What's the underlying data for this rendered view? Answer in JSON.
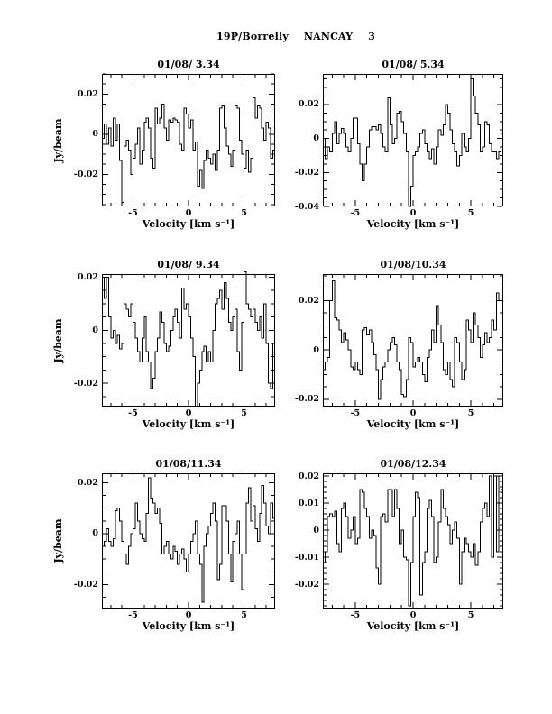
{
  "figure": {
    "header": {
      "object": "19P/Borrelly",
      "telescope": "NANCAY",
      "page_number": "3"
    }
  },
  "chart_data": [
    {
      "type": "line",
      "title": "01/08/ 3.34",
      "xlabel": "Velocity [km s⁻¹]",
      "ylabel": "Jy/beam",
      "xlim": [
        -7.8,
        7.8
      ],
      "ylim": [
        -0.036,
        0.03
      ],
      "grid": false,
      "legend": null,
      "xticks": {
        "major": [
          -5,
          0,
          5
        ],
        "labels": [
          "-5",
          "0",
          "5"
        ],
        "minor_step": 1
      },
      "yticks": {
        "major": [
          0.02,
          0,
          -0.02
        ],
        "labels": [
          "0.02",
          "0",
          "-0.02"
        ],
        "minor_step": 0.005
      },
      "values": [
        -0.002,
        0.005,
        -0.005,
        0.003,
        -0.006,
        0.008,
        -0.003,
        0.005,
        -0.013,
        -0.034,
        -0.006,
        -0.003,
        -0.008,
        -0.02,
        -0.012,
        -0.005,
        0.003,
        -0.015,
        -0.008,
        0.006,
        0.008,
        0.003,
        -0.012,
        -0.017,
        0.013,
        0.005,
        0.008,
        0.015,
        0.003,
        -0.003,
        0.007,
        0.006,
        0.008,
        0.007,
        0.006,
        -0.005,
        -0.008,
        0.013,
        0.01,
        0.003,
        0.007,
        -0.008,
        -0.004,
        -0.026,
        -0.018,
        -0.027,
        -0.013,
        -0.008,
        -0.012,
        -0.015,
        -0.01,
        -0.018,
        -0.008,
        0.013,
        0.014,
        0.003,
        -0.006,
        -0.01,
        -0.016,
        -0.008,
        0.014,
        0.013,
        -0.003,
        -0.01,
        -0.017,
        -0.008,
        -0.019,
        -0.012,
        0.018,
        0.008,
        0.014,
        0.013,
        0.003,
        -0.003,
        0.006,
        0.003,
        -0.012,
        -0.008
      ]
    },
    {
      "type": "line",
      "title": "01/08/ 5.34",
      "xlabel": "Velocity [km s⁻¹]",
      "ylabel": null,
      "xlim": [
        -7.8,
        7.8
      ],
      "ylim": [
        -0.04,
        0.038
      ],
      "grid": false,
      "legend": null,
      "xticks": {
        "major": [
          -5,
          0,
          5
        ],
        "labels": [
          "-5",
          "0",
          "5"
        ],
        "minor_step": 1
      },
      "yticks": {
        "major": [
          0.02,
          0,
          -0.02,
          -0.04
        ],
        "labels": [
          "0.02",
          "0",
          "-0.02",
          "-0.04"
        ],
        "minor_step": 0.005
      },
      "values": [
        0,
        -0.012,
        -0.005,
        -0.008,
        0.003,
        0.01,
        -0.003,
        0.003,
        0.006,
        0.003,
        -0.005,
        -0.008,
        0,
        0.012,
        0.012,
        -0.003,
        -0.015,
        -0.025,
        -0.015,
        -0.005,
        0.005,
        0.007,
        0.007,
        0.005,
        0.008,
        0.003,
        -0.005,
        -0.008,
        0.024,
        0.008,
        -0.003,
        0,
        0.015,
        0.016,
        0.01,
        0.003,
        -0.008,
        -0.04,
        -0.028,
        -0.01,
        -0.008,
        -0.005,
        0.003,
        0.005,
        -0.003,
        -0.008,
        -0.012,
        -0.006,
        -0.015,
        -0.005,
        0.005,
        0.002,
        0.008,
        0.02,
        0.015,
        0.005,
        -0.003,
        -0.008,
        -0.016,
        -0.01,
        0.003,
        -0.005,
        -0.008,
        0,
        0.035,
        0.025,
        0.015,
        0.008,
        -0.008,
        -0.005,
        0.01,
        0.008,
        -0.003,
        -0.008,
        -0.008,
        -0.012,
        -0.008,
        0.003
      ]
    },
    {
      "type": "line",
      "title": "01/08/ 9.34",
      "xlabel": "Velocity [km s⁻¹]",
      "ylabel": "Jy/beam",
      "xlim": [
        -7.8,
        7.8
      ],
      "ylim": [
        -0.0288,
        0.0212
      ],
      "grid": false,
      "legend": null,
      "xticks": {
        "major": [
          -5,
          0,
          5
        ],
        "labels": [
          "-5",
          "0",
          "5"
        ],
        "minor_step": 1
      },
      "yticks": {
        "major": [
          0.02,
          0,
          -0.02
        ],
        "labels": [
          "0.02",
          "0",
          "-0.02"
        ],
        "minor_step": 0.005
      },
      "values": [
        0.02,
        0.012,
        0.02,
        0.005,
        -0.003,
        0,
        -0.005,
        -0.002,
        -0.007,
        -0.005,
        0.01,
        0.008,
        0.005,
        0.01,
        0.003,
        -0.003,
        -0.008,
        -0.012,
        -0.003,
        0.005,
        -0.008,
        -0.012,
        -0.022,
        -0.018,
        -0.008,
        -0.003,
        0.007,
        0.003,
        -0.005,
        -0.008,
        -0.006,
        0,
        0.005,
        0.008,
        0.003,
        -0.003,
        0.016,
        0.008,
        0.01,
        0.005,
        -0.003,
        -0.01,
        -0.029,
        -0.02,
        -0.015,
        -0.008,
        -0.006,
        -0.012,
        -0.008,
        -0.012,
        0,
        0.01,
        0.012,
        0.015,
        0.008,
        0.018,
        0.012,
        0.003,
        0,
        0.005,
        0.008,
        -0.008,
        -0.015,
        0.003,
        0.022,
        0.01,
        0.008,
        0.005,
        0.008,
        0.003,
        0,
        0.005,
        -0.003,
        0.01,
        -0.005,
        -0.02,
        -0.022,
        -0.005
      ]
    },
    {
      "type": "line",
      "title": "01/08/10.34",
      "xlabel": "Velocity [km s⁻¹]",
      "ylabel": null,
      "xlim": [
        -7.8,
        7.8
      ],
      "ylim": [
        -0.023,
        0.0307
      ],
      "grid": false,
      "legend": null,
      "xticks": {
        "major": [
          -5,
          0,
          5
        ],
        "labels": [
          "-5",
          "0",
          "5"
        ],
        "minor_step": 1
      },
      "yticks": {
        "major": [
          0.02,
          0,
          -0.02
        ],
        "labels": [
          "0.02",
          "0",
          "-0.02"
        ],
        "minor_step": 0.005
      },
      "values": [
        -0.008,
        -0.005,
        -0.003,
        0.02,
        0.028,
        0.013,
        0.012,
        0.008,
        0.003,
        0.007,
        0.004,
        0,
        -0.007,
        -0.008,
        -0.005,
        -0.008,
        -0.01,
        0.008,
        0.009,
        0.006,
        0.008,
        0.003,
        -0.002,
        -0.008,
        -0.02,
        -0.012,
        -0.007,
        -0.005,
        0,
        0.003,
        0.005,
        0.002,
        -0.005,
        -0.008,
        -0.018,
        -0.019,
        -0.012,
        0.005,
        0.003,
        -0.007,
        -0.005,
        -0.003,
        -0.005,
        -0.01,
        -0.013,
        -0.003,
        0,
        0.008,
        0.003,
        0.018,
        0.01,
        0.003,
        -0.008,
        -0.01,
        -0.005,
        -0.012,
        -0.015,
        0.005,
        0.003,
        -0.005,
        -0.012,
        -0.008,
        0.012,
        0.008,
        0.003,
        0.015,
        0.01,
        0.005,
        -0.003,
        0.002,
        0.007,
        0.003,
        0.005,
        0.012,
        0.008,
        0.023,
        0.02,
        0.015
      ]
    },
    {
      "type": "line",
      "title": "01/08/11.34",
      "xlabel": "Velocity [km s⁻¹]",
      "ylabel": "Jy/beam",
      "xlim": [
        -7.8,
        7.8
      ],
      "ylim": [
        -0.0294,
        0.0237
      ],
      "grid": false,
      "legend": null,
      "xticks": {
        "major": [
          -5,
          0,
          5
        ],
        "labels": [
          "-5",
          "0",
          "5"
        ],
        "minor_step": 1
      },
      "yticks": {
        "major": [
          0.02,
          0,
          -0.02
        ],
        "labels": [
          "0.02",
          "0",
          "-0.02"
        ],
        "minor_step": 0.005
      },
      "values": [
        -0.005,
        -0.003,
        0.002,
        -0.003,
        -0.005,
        -0.002,
        0.009,
        0.01,
        0.005,
        -0.003,
        -0.008,
        -0.012,
        -0.005,
        0,
        0.002,
        0.012,
        0.005,
        0,
        -0.002,
        -0.003,
        0.008,
        0.022,
        0.014,
        0.012,
        0.008,
        0.01,
        0.004,
        -0.008,
        -0.005,
        -0.003,
        -0.008,
        -0.01,
        -0.005,
        -0.007,
        -0.012,
        -0.008,
        -0.006,
        -0.01,
        -0.015,
        -0.008,
        -0.003,
        0,
        0.005,
        -0.008,
        -0.012,
        -0.027,
        -0.005,
        0,
        0.003,
        0.008,
        0.012,
        0.005,
        -0.018,
        -0.012,
        0.011,
        0.011,
        0.005,
        -0.008,
        -0.019,
        -0.003,
        0,
        0.005,
        -0.008,
        -0.022,
        -0.008,
        0.012,
        0.018,
        0.005,
        0.011,
        0.002,
        -0.003,
        0.008,
        0.019,
        0.012,
        0.003,
        0,
        0.012,
        0.006
      ]
    },
    {
      "type": "line",
      "title": "01/08/12.34",
      "xlabel": "Velocity [km s⁻¹]",
      "ylabel": null,
      "xlim": [
        -7.8,
        7.8
      ],
      "ylim": [
        -0.029,
        0.021
      ],
      "grid": false,
      "legend": null,
      "xticks": {
        "major": [
          -5,
          0,
          5
        ],
        "labels": [
          "-5",
          "0",
          "5"
        ],
        "minor_step": 1
      },
      "yticks": {
        "major": [
          0.02,
          0.01,
          0,
          -0.01,
          -0.02
        ],
        "labels": [
          "0.02",
          "0.01",
          "0",
          "-0.01",
          "-0.02"
        ],
        "minor_step": 0.002
      },
      "values": [
        -0.012,
        -0.008,
        0.005,
        0.006,
        0.005,
        0.007,
        -0.005,
        -0.008,
        0.008,
        0.01,
        0.005,
        -0.003,
        0,
        0.005,
        -0.005,
        -0.003,
        0.015,
        0.014,
        0.008,
        0.005,
        -0.003,
        0,
        -0.002,
        -0.014,
        -0.02,
        0.005,
        0.006,
        0.003,
        0.015,
        0.015,
        0.005,
        0.015,
        0.008,
        -0.005,
        0,
        -0.01,
        -0.011,
        -0.028,
        -0.012,
        0.005,
        0.014,
        0.012,
        -0.024,
        -0.012,
        -0.008,
        0.008,
        0.011,
        0.005,
        -0.012,
        -0.01,
        0.003,
        0.015,
        0.008,
        0.005,
        0.002,
        -0.005,
        0,
        0.003,
        -0.003,
        -0.02,
        -0.008,
        -0.003,
        -0.005,
        -0.008,
        -0.01,
        -0.005,
        -0.013,
        -0.008,
        0.003,
        0.008,
        0.01,
        0.005,
        0.02,
        -0.01,
        0.02,
        -0.008,
        0.02,
        0.015
      ]
    }
  ]
}
